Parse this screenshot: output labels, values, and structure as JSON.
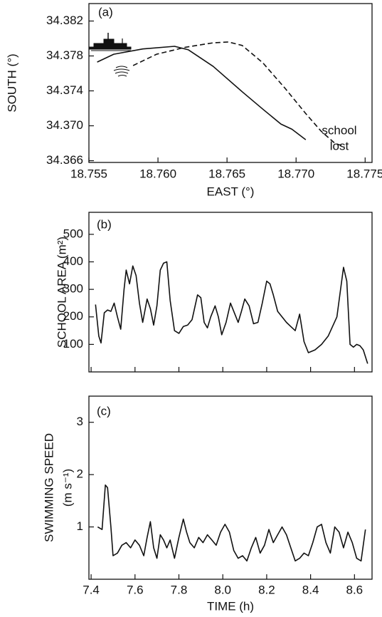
{
  "chart_data": [
    {
      "type": "line",
      "annotation": "(a)",
      "note": [
        "school",
        "lost"
      ],
      "xlabel": "EAST (°)",
      "ylabel": "SOUTH (°)",
      "xlim": [
        18.755,
        18.7755
      ],
      "ylim": [
        34.3658,
        34.384
      ],
      "xticks": [
        18.755,
        {
          "value": 18.76,
          "label": "18.760"
        },
        18.765,
        {
          "value": 18.77,
          "label": "18.770"
        },
        18.775
      ],
      "yticks": [
        34.366,
        {
          "value": 34.37,
          "label": "34.370"
        },
        34.374,
        34.378,
        34.382
      ],
      "series": [
        {
          "color": "#111111",
          "style": "solid",
          "x": [
            18.7556,
            18.7568,
            18.7589,
            18.7612,
            18.7622,
            18.764,
            18.7661,
            18.7676,
            18.7689,
            18.7697,
            18.7702,
            18.7707
          ],
          "values": [
            34.3773,
            34.3782,
            34.3788,
            34.3791,
            34.3787,
            34.3768,
            34.3739,
            34.3719,
            34.3702,
            34.3696,
            34.369,
            34.3684
          ]
        },
        {
          "color": "#111111",
          "style": "dashed",
          "x": [
            18.7582,
            18.7599,
            18.762,
            18.764,
            18.7651,
            18.7661,
            18.7676,
            18.7692,
            18.7707,
            18.7718,
            18.7728,
            18.7735
          ],
          "values": [
            34.3769,
            34.3782,
            34.379,
            34.3795,
            34.3796,
            34.3792,
            34.3772,
            34.3743,
            34.3714,
            34.3694,
            34.368,
            34.3676
          ]
        }
      ]
    },
    {
      "type": "line",
      "annotation": "(b)",
      "ylabel": "SCHOOL AREA (m²)",
      "xlim": [
        7.39,
        8.68
      ],
      "ylim": [
        0,
        580
      ],
      "yticks": [
        100,
        200,
        300,
        400,
        500
      ],
      "series": [
        {
          "color": "#111111",
          "style": "solid",
          "x": [
            7.42,
            7.435,
            7.445,
            7.46,
            7.475,
            7.49,
            7.505,
            7.52,
            7.535,
            7.55,
            7.56,
            7.575,
            7.59,
            7.605,
            7.62,
            7.635,
            7.655,
            7.67,
            7.685,
            7.7,
            7.715,
            7.73,
            7.745,
            7.76,
            7.78,
            7.8,
            7.82,
            7.84,
            7.86,
            7.885,
            7.9,
            7.915,
            7.93,
            7.945,
            7.965,
            7.98,
            7.995,
            8.015,
            8.035,
            8.055,
            8.07,
            8.085,
            8.1,
            8.12,
            8.14,
            8.16,
            8.18,
            8.2,
            8.215,
            8.23,
            8.25,
            8.27,
            8.29,
            8.31,
            8.33,
            8.35,
            8.37,
            8.39,
            8.42,
            8.45,
            8.48,
            8.52,
            8.55,
            8.565,
            8.58,
            8.595,
            8.61,
            8.625,
            8.64,
            8.66
          ],
          "values": [
            245,
            130,
            105,
            215,
            225,
            220,
            250,
            200,
            155,
            300,
            370,
            320,
            385,
            350,
            250,
            180,
            265,
            230,
            170,
            240,
            370,
            395,
            400,
            260,
            150,
            140,
            165,
            170,
            190,
            280,
            270,
            180,
            160,
            200,
            240,
            200,
            135,
            180,
            250,
            210,
            180,
            220,
            265,
            240,
            175,
            180,
            250,
            330,
            320,
            280,
            220,
            200,
            180,
            165,
            150,
            210,
            110,
            70,
            80,
            100,
            130,
            200,
            380,
            330,
            100,
            90,
            100,
            95,
            80,
            30
          ]
        }
      ]
    },
    {
      "type": "line",
      "annotation": "(c)",
      "xlabel": "TIME (h)",
      "ylabel": [
        "SWIMMING SPEED",
        "(m s⁻¹)"
      ],
      "xlim": [
        7.39,
        8.68
      ],
      "ylim": [
        0,
        3.5
      ],
      "xticks": [
        7.4,
        7.6,
        7.8,
        {
          "value": 8,
          "label": "8.0"
        },
        8.2,
        8.4,
        8.6
      ],
      "yticks": [
        1,
        2,
        3
      ],
      "series": [
        {
          "color": "#111111",
          "style": "solid",
          "x": [
            7.43,
            7.45,
            7.465,
            7.475,
            7.49,
            7.5,
            7.52,
            7.54,
            7.56,
            7.58,
            7.6,
            7.62,
            7.64,
            7.655,
            7.67,
            7.685,
            7.7,
            7.715,
            7.73,
            7.745,
            7.76,
            7.78,
            7.8,
            7.82,
            7.835,
            7.85,
            7.87,
            7.89,
            7.91,
            7.93,
            7.95,
            7.97,
            7.99,
            8.01,
            8.03,
            8.05,
            8.07,
            8.09,
            8.11,
            8.13,
            8.15,
            8.17,
            8.19,
            8.21,
            8.23,
            8.25,
            8.27,
            8.29,
            8.31,
            8.33,
            8.35,
            8.37,
            8.39,
            8.41,
            8.43,
            8.45,
            8.47,
            8.49,
            8.51,
            8.53,
            8.55,
            8.57,
            8.59,
            8.61,
            8.63,
            8.65
          ],
          "values": [
            1.0,
            0.95,
            1.8,
            1.75,
            1.0,
            0.45,
            0.5,
            0.65,
            0.7,
            0.6,
            0.75,
            0.65,
            0.45,
            0.8,
            1.1,
            0.6,
            0.4,
            0.85,
            0.75,
            0.6,
            0.75,
            0.4,
            0.8,
            1.15,
            0.9,
            0.7,
            0.6,
            0.8,
            0.7,
            0.85,
            0.75,
            0.65,
            0.9,
            1.05,
            0.9,
            0.55,
            0.4,
            0.45,
            0.35,
            0.6,
            0.8,
            0.5,
            0.65,
            0.95,
            0.7,
            0.85,
            1.0,
            0.85,
            0.6,
            0.35,
            0.4,
            0.5,
            0.45,
            0.7,
            1.0,
            1.05,
            0.7,
            0.5,
            1.0,
            0.9,
            0.6,
            0.9,
            0.7,
            0.4,
            0.35,
            0.95
          ]
        }
      ]
    }
  ]
}
